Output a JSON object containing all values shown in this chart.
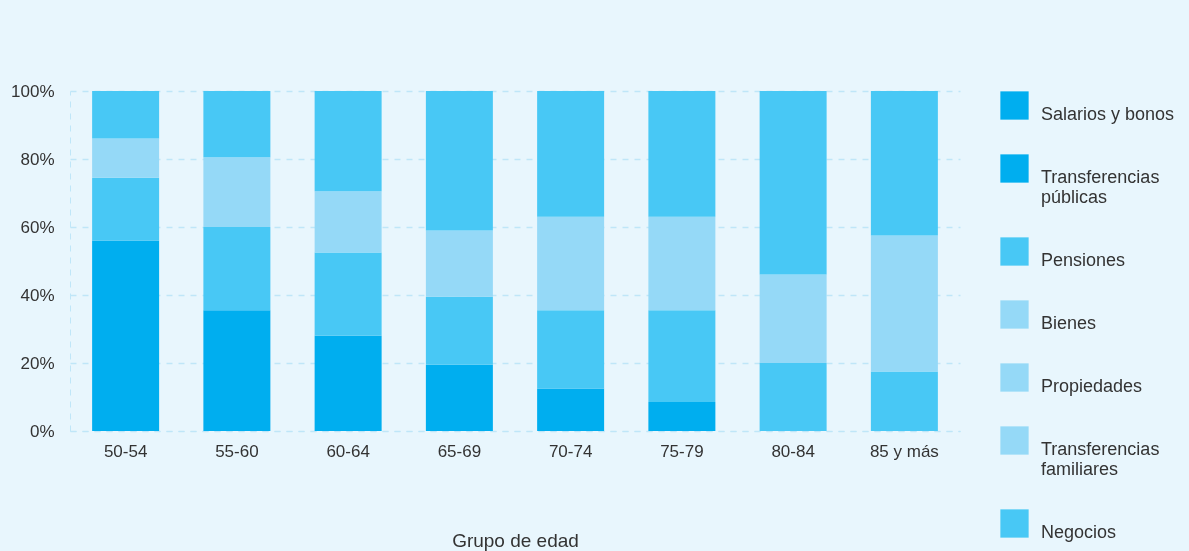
{
  "chart_data": {
    "type": "bar",
    "stacked": true,
    "xlabel": "Grupo de edad",
    "categories": [
      "50-54",
      "55-60",
      "60-64",
      "65-69",
      "70-74",
      "75-79",
      "80-84",
      "85 y más"
    ],
    "ylim": [
      0,
      100
    ],
    "yticks": [
      {
        "value": 0,
        "label": "0%"
      },
      {
        "value": 20,
        "label": "20%"
      },
      {
        "value": 40,
        "label": "40%"
      },
      {
        "value": 60,
        "label": "60%"
      },
      {
        "value": 80,
        "label": "80%"
      },
      {
        "value": 100,
        "label": "100%"
      }
    ],
    "grid": "y",
    "legend": "right",
    "series": [
      {
        "name": "Salarios y bonos",
        "color": "#00aeef",
        "values": [
          56,
          35.5,
          28,
          19.5,
          12.5,
          8.5,
          null,
          null
        ]
      },
      {
        "name": "Transferencias públicas",
        "color": "#00aeef",
        "values": [
          null,
          null,
          null,
          null,
          null,
          null,
          null,
          null
        ]
      },
      {
        "name": "Pensiones",
        "color": "#48c8f5",
        "values": [
          18.5,
          24.5,
          24.5,
          20,
          23,
          27,
          20,
          17.5
        ]
      },
      {
        "name": "Bienes",
        "color": "#95d9f7",
        "values": [
          11.5,
          20.5,
          18,
          19.5,
          27.5,
          27.5,
          26,
          40
        ]
      },
      {
        "name": "Propiedades",
        "color": "#95d9f7",
        "values": [
          null,
          null,
          null,
          null,
          null,
          null,
          null,
          null
        ]
      },
      {
        "name": "Transferencias familiares",
        "color": "#95d9f7",
        "values": [
          null,
          null,
          null,
          null,
          null,
          null,
          null,
          null
        ]
      },
      {
        "name": "Negocios",
        "color": "#48c8f5",
        "values": [
          14,
          19.5,
          29.5,
          41,
          37,
          37,
          54,
          42.5
        ]
      }
    ]
  }
}
